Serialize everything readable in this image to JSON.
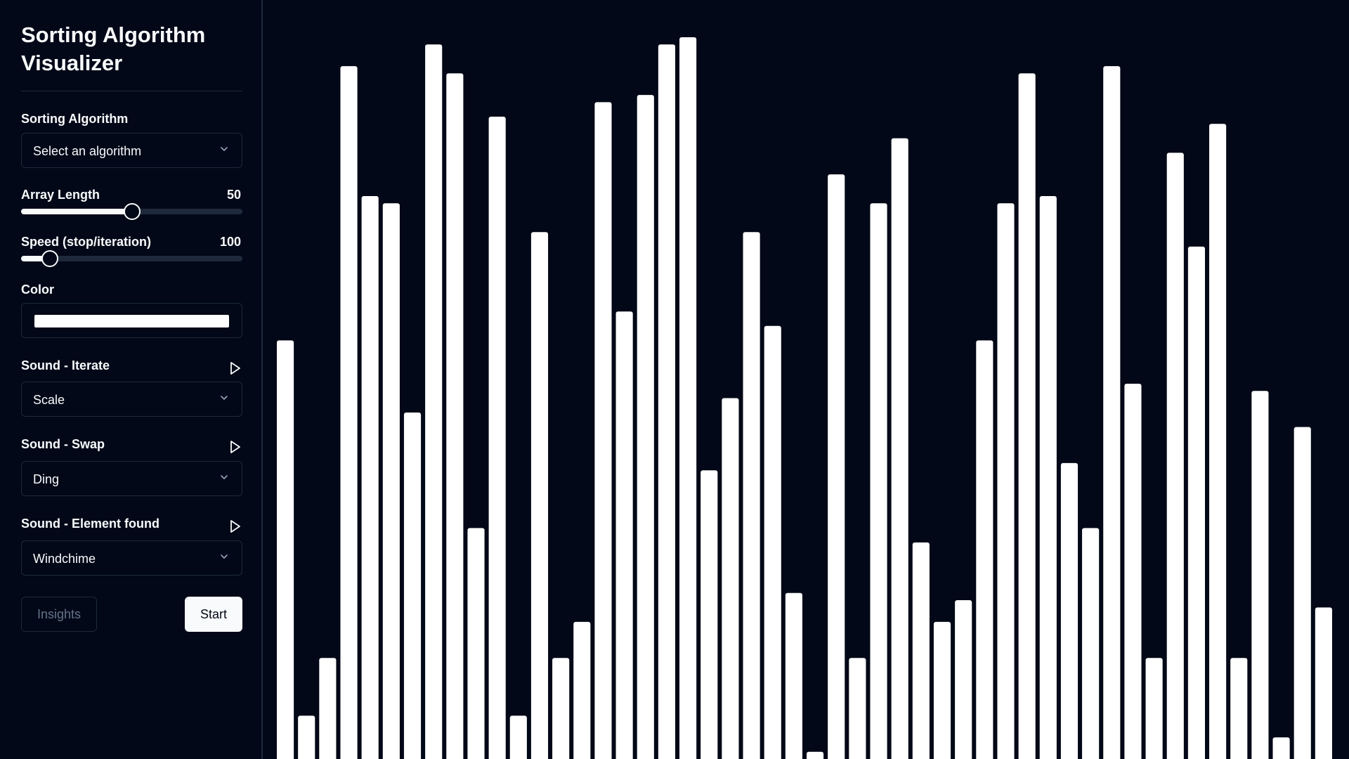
{
  "app": {
    "title": "Sorting Algorithm Visualizer"
  },
  "controls": {
    "algorithm": {
      "label": "Sorting Algorithm",
      "value": "Select an algorithm"
    },
    "array_length": {
      "label": "Array Length",
      "value": "50",
      "fraction": 0.5
    },
    "speed": {
      "label": "Speed (stop/iteration)",
      "value": "100",
      "fraction": 0.13
    },
    "color": {
      "label": "Color",
      "value": "#ffffff"
    },
    "sound_iterate": {
      "label": "Sound - Iterate",
      "value": "Scale"
    },
    "sound_swap": {
      "label": "Sound - Swap",
      "value": "Ding"
    },
    "sound_found": {
      "label": "Sound - Element found",
      "value": "Windchime"
    }
  },
  "buttons": {
    "insights": "Insights",
    "start": "Start"
  },
  "icons": {
    "play": "play-icon",
    "chevron": "chevron-down-icon"
  },
  "colors": {
    "background": "#020817",
    "border": "#1e293b",
    "bar": "#ffffff",
    "muted": "#64748b"
  },
  "chart_data": {
    "type": "bar",
    "values": [
      58,
      6,
      14,
      96,
      78,
      77,
      48,
      99,
      95,
      32,
      89,
      6,
      73,
      14,
      19,
      91,
      62,
      92,
      99,
      100,
      40,
      50,
      73,
      60,
      23,
      1,
      81,
      14,
      77,
      86,
      30,
      19,
      22,
      58,
      77,
      95,
      78,
      41,
      32,
      96,
      52,
      14,
      84,
      71,
      88,
      14,
      51,
      3,
      46,
      21
    ],
    "ylim": [
      0,
      100
    ],
    "grid": false
  }
}
